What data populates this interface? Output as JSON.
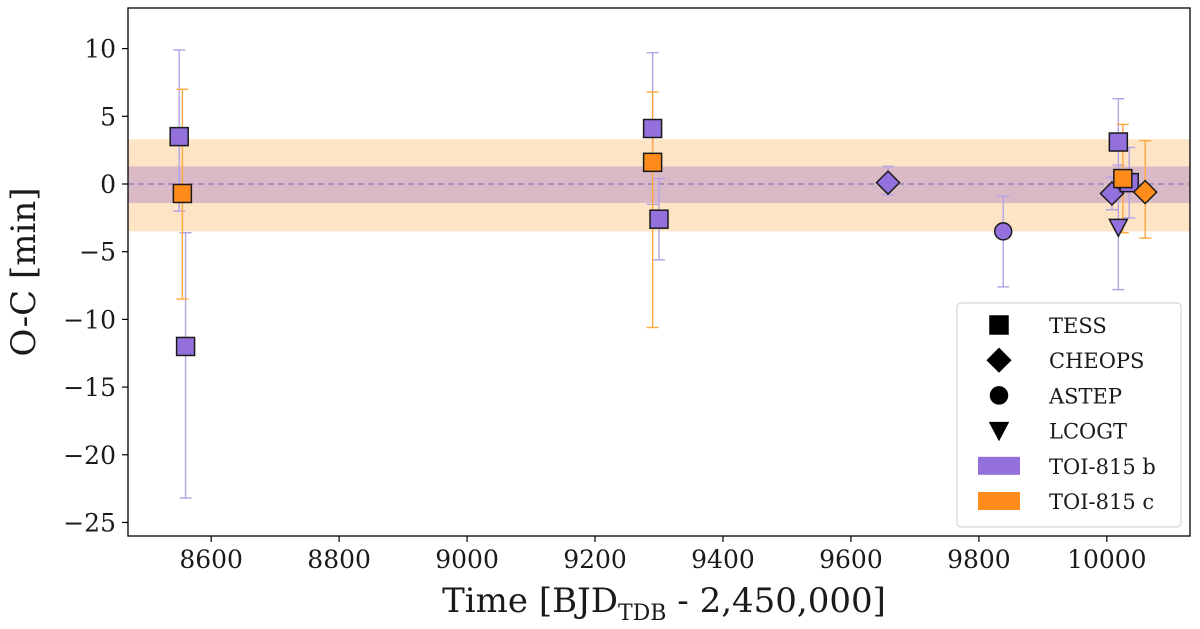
{
  "chart_data": {
    "type": "scatter",
    "xlabel_main": "Time [BJD",
    "xlabel_sub": "TDB",
    "xlabel_tail": " - 2,450,000]",
    "ylabel": "O-C [min]",
    "xlim": [
      8470,
      10130
    ],
    "ylim": [
      -26,
      13
    ],
    "x_ticks": [
      8600,
      8800,
      9000,
      9200,
      9400,
      9600,
      9800,
      10000
    ],
    "x_tick_labels": [
      "8600",
      "8800",
      "9000",
      "9200",
      "9400",
      "9600",
      "9800",
      "10000"
    ],
    "y_ticks": [
      10,
      5,
      0,
      -5,
      -10,
      -15,
      -20,
      -25
    ],
    "y_tick_labels": [
      "10",
      "5",
      "0",
      "−5",
      "−10",
      "−15",
      "−20",
      "−25"
    ],
    "grid": false,
    "bands": [
      {
        "planet": "c",
        "y_low": -3.5,
        "y_high": 3.3,
        "color": "#fde4c4"
      },
      {
        "planet": "b",
        "y_low": -1.4,
        "y_high": 1.3,
        "color": "#d9b9c6"
      }
    ],
    "zero_line": {
      "y": 0,
      "color": "#8f7ab5",
      "style": "dashed"
    },
    "colors": {
      "b": "#9370db",
      "c": "#ff8c1a",
      "b_err": "#b4a2e8",
      "c_err": "#ffa940"
    },
    "series": [
      {
        "name": "TOI-815 b",
        "planet": "b",
        "points": [
          {
            "x": 8550,
            "y": 3.5,
            "err_low": 5.5,
            "err_high": 6.4,
            "instrument": "TESS"
          },
          {
            "x": 8560,
            "y": -12.0,
            "err_low": 11.2,
            "err_high": 8.4,
            "instrument": "TESS"
          },
          {
            "x": 9290,
            "y": 4.1,
            "err_low": 5.6,
            "err_high": 5.6,
            "instrument": "TESS"
          },
          {
            "x": 9300,
            "y": -2.6,
            "err_low": 3.0,
            "err_high": 3.0,
            "instrument": "TESS"
          },
          {
            "x": 9658,
            "y": 0.1,
            "err_low": 0.9,
            "err_high": 1.2,
            "instrument": "CHEOPS"
          },
          {
            "x": 9838,
            "y": -3.5,
            "err_low": 4.1,
            "err_high": 2.6,
            "instrument": "ASTEP"
          },
          {
            "x": 10008,
            "y": -0.7,
            "err_low": 1.2,
            "err_high": 1.2,
            "instrument": "CHEOPS"
          },
          {
            "x": 10018,
            "y": 3.1,
            "err_low": 3.1,
            "err_high": 3.2,
            "instrument": "TESS"
          },
          {
            "x": 10018,
            "y": -3.2,
            "err_low": 4.6,
            "err_high": 4.6,
            "instrument": "LCOGT"
          },
          {
            "x": 10035,
            "y": 0.1,
            "err_low": 2.6,
            "err_high": 2.6,
            "instrument": "TESS"
          }
        ]
      },
      {
        "name": "TOI-815 c",
        "planet": "c",
        "points": [
          {
            "x": 8555,
            "y": -0.7,
            "err_low": 7.8,
            "err_high": 7.7,
            "instrument": "TESS"
          },
          {
            "x": 9290,
            "y": 1.6,
            "err_low": 12.2,
            "err_high": 5.2,
            "instrument": "TESS"
          },
          {
            "x": 10025,
            "y": 0.4,
            "err_low": 4.0,
            "err_high": 4.0,
            "instrument": "TESS"
          },
          {
            "x": 10060,
            "y": -0.6,
            "err_low": 3.4,
            "err_high": 3.8,
            "instrument": "CHEOPS"
          }
        ]
      }
    ],
    "legend": {
      "position": "lower-right",
      "entries": [
        {
          "label": "TESS",
          "kind": "marker",
          "shape": "square"
        },
        {
          "label": "CHEOPS",
          "kind": "marker",
          "shape": "diamond"
        },
        {
          "label": "ASTEP",
          "kind": "marker",
          "shape": "circle"
        },
        {
          "label": "LCOGT",
          "kind": "marker",
          "shape": "triangle-down"
        },
        {
          "label": "TOI-815 b",
          "kind": "patch",
          "color": "#9370db"
        },
        {
          "label": "TOI-815 c",
          "kind": "patch",
          "color": "#ff8c1a"
        }
      ]
    }
  }
}
